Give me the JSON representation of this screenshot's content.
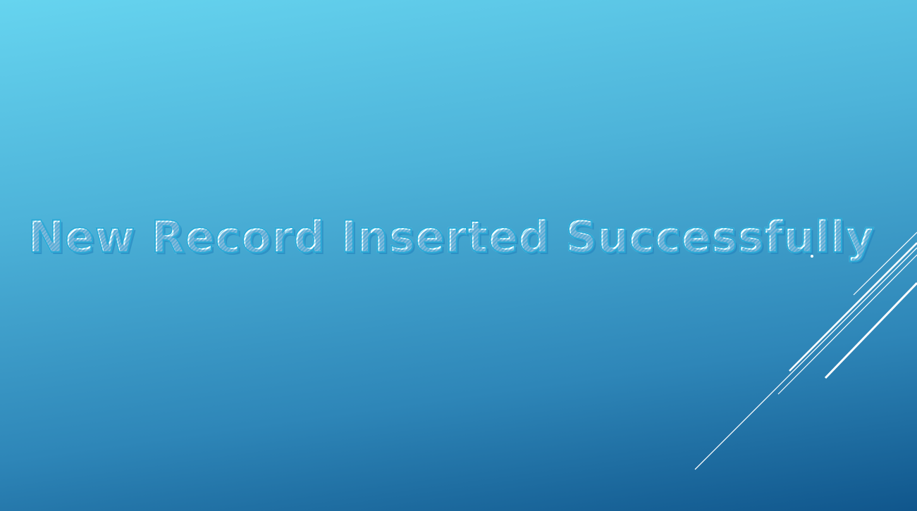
{
  "slide": {
    "title": "New Record Inserted Successfully"
  },
  "colors": {
    "background_top": "#66d4ef",
    "background_bottom": "#10568c",
    "title_fill": "#ffffff",
    "title_outline": "#2aa9d6",
    "accent_lines": "#ffffff"
  }
}
